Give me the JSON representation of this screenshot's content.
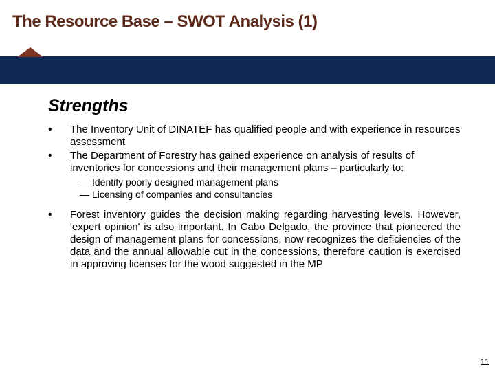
{
  "colors": {
    "title": "#5b2a1a",
    "band": "#0f2a54",
    "triangle": "#7b3525",
    "text": "#000000",
    "background": "#ffffff"
  },
  "typography": {
    "title_family": "Arial Black",
    "title_size_pt": 24,
    "title_weight": 900,
    "subhead_size_pt": 25,
    "subhead_weight": "bold",
    "subhead_style": "italic",
    "body_size_pt": 15,
    "sub_size_pt": 14,
    "pagenum_size_pt": 13
  },
  "title": {
    "text": "The Resource Base – SWOT Analysis (1)"
  },
  "subhead": "Strengths",
  "bullets": {
    "items": [
      {
        "marker": "•",
        "text": "The Inventory Unit of DINATEF has qualified people and with experience in resources assessment",
        "justify": false
      },
      {
        "marker": "•",
        "text": "The Department of Forestry has gained experience on analysis of results of inventories for concessions and their management plans – particularly to:",
        "justify": false
      }
    ],
    "subitems": [
      {
        "marker": "―",
        "text": "Identify poorly designed management plans"
      },
      {
        "marker": "―",
        "text": "Licensing of companies and consultancies"
      }
    ],
    "tail": [
      {
        "marker": "•",
        "text": "Forest inventory guides the decision making regarding harvesting levels. However, 'expert opinion' is also important. In Cabo Delgado, the province that pioneered the design of management plans for concessions, now recognizes the deficiencies of the data and the annual allowable cut in the concessions, therefore caution is exercised in approving licenses for the wood suggested in the MP",
        "justify": true
      }
    ]
  },
  "page_number": "11"
}
